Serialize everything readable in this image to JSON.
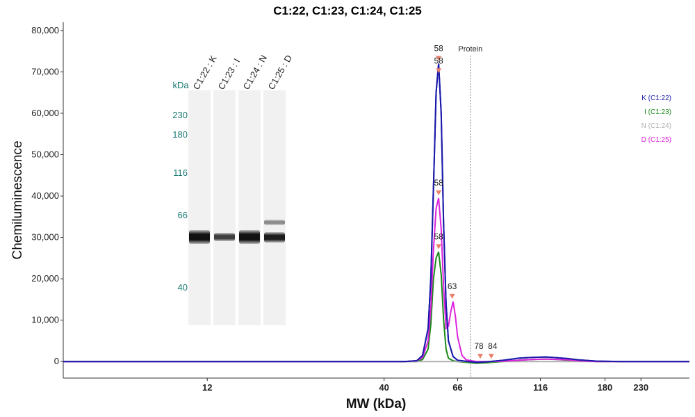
{
  "chart_data": {
    "type": "line",
    "title": "C1:22, C1:23, C1:24, C1:25",
    "xlabel": "MW (kDa)",
    "ylabel": "Chemiluminescence",
    "x_scale": "log",
    "xlim": [
      4.5,
      320
    ],
    "ylim": [
      -4000,
      82000
    ],
    "x_ticks": [
      12,
      40,
      66,
      116,
      180,
      230
    ],
    "y_ticks": [
      0,
      10000,
      20000,
      30000,
      40000,
      50000,
      60000,
      70000,
      80000
    ],
    "y_tick_labels": [
      "0",
      "10,000",
      "20,000",
      "30,000",
      "40,000",
      "50,000",
      "60,000",
      "70,000",
      "80,000"
    ],
    "grid": false,
    "legend_position": "right",
    "reference_line": {
      "label": "Protein",
      "x": 72
    },
    "series": [
      {
        "name": "K (C1:22)",
        "color": "#1a1aaa",
        "x": [
          4.5,
          10,
          20,
          30,
          40,
          46,
          50,
          52,
          54,
          55,
          56,
          57,
          58,
          59,
          60,
          61,
          62,
          64,
          66,
          70,
          75,
          80,
          90,
          100,
          110,
          120,
          130,
          140,
          150,
          170,
          200,
          250,
          320
        ],
        "y": [
          0,
          0,
          0,
          0,
          0,
          0,
          200,
          1500,
          8000,
          20000,
          42000,
          65000,
          72000,
          60000,
          33000,
          14000,
          5000,
          1200,
          300,
          50,
          -200,
          -100,
          300,
          800,
          1000,
          1100,
          900,
          700,
          400,
          100,
          0,
          0,
          0
        ]
      },
      {
        "name": "I (C1:23)",
        "color": "#1a8a1a",
        "x": [
          4.5,
          10,
          20,
          30,
          40,
          46,
          50,
          52,
          54,
          55,
          56,
          57,
          58,
          59,
          60,
          61,
          62,
          64,
          66,
          70,
          75,
          80,
          90,
          100,
          110,
          120,
          130,
          140,
          150,
          170,
          200,
          250,
          320
        ],
        "y": [
          0,
          0,
          0,
          0,
          0,
          0,
          0,
          500,
          3000,
          9000,
          20000,
          25000,
          26500,
          21000,
          10000,
          3000,
          800,
          200,
          0,
          -200,
          -400,
          -300,
          0,
          300,
          500,
          600,
          500,
          300,
          200,
          0,
          0,
          0,
          0
        ]
      },
      {
        "name": "N (C1:24)",
        "color": "#b0b0b0",
        "x": [
          4.5,
          320
        ],
        "y": [
          0,
          0
        ]
      },
      {
        "name": "D (C1:25)",
        "color": "#dd22dd",
        "x": [
          4.5,
          10,
          20,
          30,
          40,
          46,
          50,
          52,
          54,
          55,
          56,
          57,
          58,
          59,
          60,
          61,
          62,
          63,
          64,
          65,
          66,
          68,
          70,
          75,
          80,
          90,
          100,
          110,
          120,
          130,
          140,
          150,
          170,
          200,
          250,
          320
        ],
        "y": [
          0,
          0,
          0,
          0,
          0,
          0,
          200,
          1000,
          5000,
          13000,
          27000,
          37000,
          39500,
          32000,
          18000,
          8000,
          8500,
          12000,
          14500,
          11000,
          6000,
          1500,
          400,
          0,
          0,
          100,
          300,
          500,
          600,
          500,
          400,
          200,
          0,
          0,
          0,
          0
        ]
      }
    ],
    "peak_annotations": [
      {
        "label": "58",
        "x": 58,
        "y": 72000
      },
      {
        "label": "58",
        "x": 58,
        "y": 69000
      },
      {
        "label": "58",
        "x": 58,
        "y": 39500
      },
      {
        "label": "58",
        "x": 58,
        "y": 26500
      },
      {
        "label": "63",
        "x": 63.6,
        "y": 14500
      },
      {
        "label": "78",
        "x": 77,
        "y": 0
      },
      {
        "label": "84",
        "x": 83,
        "y": 0
      }
    ],
    "inset_blot": {
      "kda_unit": "kDa",
      "markers": [
        "230",
        "180",
        "116",
        "66",
        "40"
      ],
      "lanes": [
        "C1:22 : K",
        "C1:23 : I",
        "C1:24 : N",
        "C1:25 : D"
      ]
    }
  }
}
